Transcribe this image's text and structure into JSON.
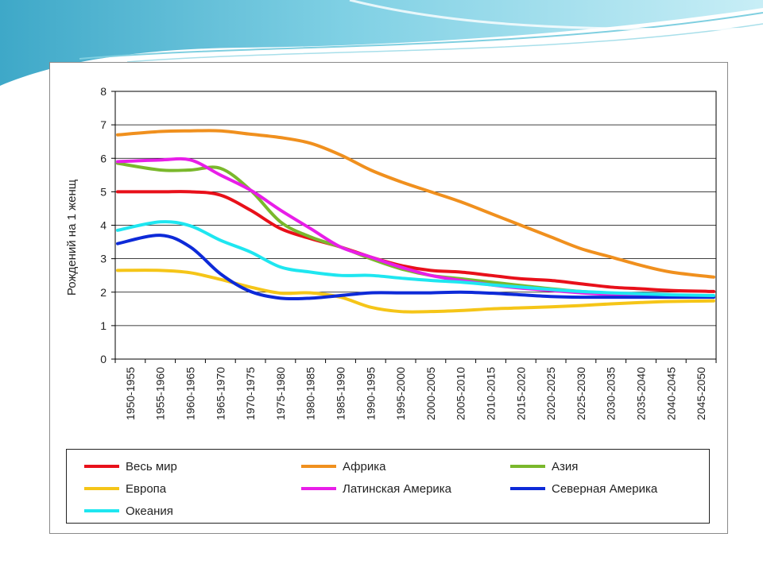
{
  "chart_data": {
    "type": "line",
    "title": "",
    "xlabel": "",
    "ylabel": "Рождений на 1 женщ",
    "ylim": [
      0,
      8
    ],
    "yticks": [
      "0",
      "1",
      "2",
      "3",
      "4",
      "5",
      "6",
      "7",
      "8"
    ],
    "grid": true,
    "legend_position": "bottom",
    "categories": [
      "1950-1955",
      "1955-1960",
      "1960-1965",
      "1965-1970",
      "1970-1975",
      "1975-1980",
      "1980-1985",
      "1985-1990",
      "1990-1995",
      "1995-2000",
      "2000-2005",
      "2005-2010",
      "2010-2015",
      "2015-2020",
      "2020-2025",
      "2025-2030",
      "2030-2035",
      "2035-2040",
      "2040-2045",
      "2045-2050"
    ],
    "series": [
      {
        "name": "Весь мир",
        "color": "#e8101a",
        "values": [
          5.0,
          5.0,
          5.0,
          4.9,
          4.45,
          3.9,
          3.6,
          3.35,
          3.05,
          2.8,
          2.65,
          2.6,
          2.5,
          2.4,
          2.35,
          2.25,
          2.15,
          2.1,
          2.05,
          2.02
        ]
      },
      {
        "name": "Африка",
        "color": "#f0901e",
        "values": [
          6.7,
          6.8,
          6.82,
          6.82,
          6.72,
          6.62,
          6.45,
          6.1,
          5.65,
          5.3,
          5.0,
          4.7,
          4.35,
          4.0,
          3.65,
          3.3,
          3.05,
          2.8,
          2.6,
          2.45
        ]
      },
      {
        "name": "Азия",
        "color": "#7ab82c",
        "values": [
          5.85,
          5.65,
          5.65,
          5.7,
          5.05,
          4.1,
          3.65,
          3.35,
          3.0,
          2.7,
          2.5,
          2.4,
          2.3,
          2.2,
          2.1,
          2.02,
          1.97,
          1.93,
          1.9,
          1.88
        ]
      },
      {
        "name": "Европа",
        "color": "#f5c518",
        "values": [
          2.65,
          2.65,
          2.58,
          2.38,
          2.15,
          1.97,
          1.98,
          1.85,
          1.55,
          1.42,
          1.42,
          1.45,
          1.5,
          1.53,
          1.56,
          1.6,
          1.65,
          1.69,
          1.72,
          1.74
        ]
      },
      {
        "name": "Латинская Америка",
        "color": "#e81ee8",
        "values": [
          5.9,
          5.95,
          5.95,
          5.5,
          5.05,
          4.45,
          3.9,
          3.35,
          3.05,
          2.75,
          2.5,
          2.35,
          2.22,
          2.12,
          2.05,
          1.98,
          1.93,
          1.9,
          1.88,
          1.86
        ]
      },
      {
        "name": "Северная Америка",
        "color": "#0d2ad8",
        "values": [
          3.45,
          3.7,
          3.35,
          2.55,
          2.02,
          1.82,
          1.82,
          1.9,
          1.98,
          1.98,
          1.98,
          2.0,
          1.97,
          1.92,
          1.87,
          1.85,
          1.85,
          1.85,
          1.85,
          1.85
        ]
      },
      {
        "name": "Океания",
        "color": "#1ee6f0",
        "values": [
          3.85,
          4.1,
          3.98,
          3.55,
          3.2,
          2.75,
          2.6,
          2.5,
          2.5,
          2.42,
          2.35,
          2.3,
          2.22,
          2.15,
          2.08,
          2.02,
          1.98,
          1.95,
          1.92,
          1.9
        ]
      }
    ]
  }
}
